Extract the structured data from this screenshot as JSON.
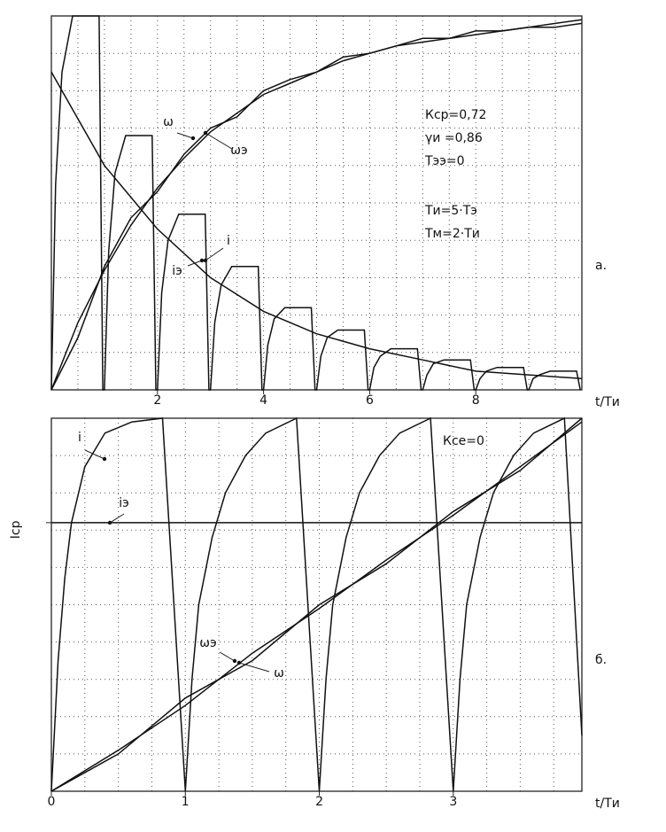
{
  "chart_data": [
    {
      "type": "line",
      "panel_label": "а.",
      "x_label": "t/Tи",
      "xlim": [
        0,
        10
      ],
      "ylim": [
        0,
        1
      ],
      "xticks": [
        2,
        4,
        6,
        8
      ],
      "xgrid": [
        0.5,
        1,
        1.5,
        2,
        2.5,
        3,
        3.5,
        4,
        4.5,
        5,
        5.5,
        6,
        6.5,
        7,
        7.5,
        8,
        8.5,
        9,
        9.5
      ],
      "ygrid": [
        0.1,
        0.2,
        0.3,
        0.4,
        0.5,
        0.6,
        0.7,
        0.8,
        0.9
      ],
      "params": [
        "Кср=0,72",
        "γи =0,86",
        "Тээ=0",
        "Ти=5·Тэ",
        "Тм=2·Ти"
      ],
      "series": [
        {
          "name": "ω",
          "color": "#111",
          "x": [
            0,
            0.5,
            1,
            1.5,
            2,
            2.5,
            3,
            3.5,
            4,
            4.5,
            5,
            5.5,
            6,
            6.5,
            7,
            7.5,
            8,
            8.5,
            9,
            9.5,
            10
          ],
          "values": [
            0,
            0.14,
            0.33,
            0.46,
            0.53,
            0.63,
            0.7,
            0.73,
            0.8,
            0.83,
            0.85,
            0.89,
            0.9,
            0.92,
            0.94,
            0.94,
            0.96,
            0.96,
            0.97,
            0.98,
            0.99
          ]
        },
        {
          "name": "ωэ",
          "color": "#111",
          "x": [
            0,
            0.5,
            1,
            1.5,
            2,
            2.5,
            3,
            3.5,
            4,
            4.5,
            5,
            5.5,
            6,
            6.5,
            7,
            7.5,
            8,
            8.5,
            9,
            9.5,
            10
          ],
          "values": [
            0,
            0.18,
            0.32,
            0.44,
            0.54,
            0.62,
            0.69,
            0.74,
            0.79,
            0.82,
            0.85,
            0.88,
            0.9,
            0.92,
            0.93,
            0.94,
            0.95,
            0.96,
            0.97,
            0.97,
            0.98
          ]
        },
        {
          "name": "iэ",
          "color": "#111",
          "x": [
            0,
            1,
            2,
            3,
            4,
            5,
            6,
            7,
            8,
            9,
            10
          ],
          "values": [
            0.85,
            0.6,
            0.43,
            0.3,
            0.21,
            0.15,
            0.11,
            0.08,
            0.05,
            0.04,
            0.03
          ]
        },
        {
          "name": "i",
          "color": "#111",
          "x": [
            0,
            0.08,
            0.2,
            0.4,
            0.9,
            0.97,
            1,
            1.08,
            1.2,
            1.4,
            1.9,
            1.97,
            2,
            2.08,
            2.2,
            2.4,
            2.9,
            2.97,
            3,
            3.08,
            3.2,
            3.4,
            3.9,
            3.97,
            4,
            4.08,
            4.2,
            4.4,
            4.9,
            4.97,
            5,
            5.08,
            5.2,
            5.4,
            5.9,
            5.97,
            6,
            6.08,
            6.2,
            6.4,
            6.9,
            6.97,
            7,
            7.08,
            7.2,
            7.4,
            7.9,
            7.97,
            8,
            8.08,
            8.2,
            8.4,
            8.9,
            8.97,
            9,
            9.08,
            9.2,
            9.4,
            9.9,
            9.97
          ],
          "values": [
            0,
            0.55,
            0.85,
            1,
            1,
            0,
            0,
            0.37,
            0.58,
            0.68,
            0.68,
            0,
            0,
            0.26,
            0.4,
            0.47,
            0.47,
            0,
            0,
            0.18,
            0.28,
            0.33,
            0.33,
            0,
            0,
            0.12,
            0.19,
            0.22,
            0.22,
            0,
            0,
            0.09,
            0.14,
            0.16,
            0.16,
            0,
            0,
            0.06,
            0.09,
            0.11,
            0.11,
            0,
            0,
            0.04,
            0.07,
            0.08,
            0.08,
            0,
            0,
            0.03,
            0.05,
            0.06,
            0.06,
            0,
            0,
            0.03,
            0.04,
            0.05,
            0.05,
            0
          ]
        }
      ]
    },
    {
      "type": "line",
      "panel_label": "б.",
      "x_label": "t/Tи",
      "xlim": [
        0,
        3.96
      ],
      "ylim": [
        0,
        1
      ],
      "xticks": [
        0,
        1,
        2,
        3
      ],
      "yticks": [
        {
          "value": 0.72,
          "label": "Iср"
        }
      ],
      "xgrid": [
        0.25,
        0.5,
        0.75,
        1,
        1.25,
        1.5,
        1.75,
        2,
        2.25,
        2.5,
        2.75,
        3,
        3.25,
        3.5,
        3.75
      ],
      "ygrid": [
        0.1,
        0.2,
        0.3,
        0.4,
        0.5,
        0.6,
        0.7,
        0.8,
        0.9
      ],
      "params": [
        "Ксе=0"
      ],
      "series": [
        {
          "name": "i",
          "color": "#111",
          "x": [
            0,
            0.05,
            0.1,
            0.15,
            0.25,
            0.4,
            0.6,
            0.83,
            1,
            1.05,
            1.1,
            1.2,
            1.3,
            1.45,
            1.6,
            1.83,
            2,
            2.05,
            2.1,
            2.2,
            2.3,
            2.45,
            2.6,
            2.83,
            3,
            3.05,
            3.1,
            3.2,
            3.3,
            3.45,
            3.6,
            3.83,
            3.96
          ],
          "values": [
            0,
            0.35,
            0.57,
            0.72,
            0.87,
            0.96,
            0.99,
            1,
            0,
            0.3,
            0.5,
            0.68,
            0.8,
            0.9,
            0.96,
            1,
            0,
            0.3,
            0.5,
            0.68,
            0.8,
            0.9,
            0.96,
            1,
            0,
            0.3,
            0.5,
            0.68,
            0.8,
            0.9,
            0.96,
            1,
            0.15
          ]
        },
        {
          "name": "iэ",
          "color": "#111",
          "x": [
            0,
            3.96
          ],
          "values": [
            0.72,
            0.72
          ]
        },
        {
          "name": "ωэ",
          "color": "#111",
          "x": [
            0,
            0.5,
            1,
            1.5,
            2,
            2.5,
            3,
            3.5,
            3.96
          ],
          "values": [
            0,
            0.11,
            0.23,
            0.37,
            0.49,
            0.62,
            0.74,
            0.87,
            0.99
          ]
        },
        {
          "name": "ω",
          "color": "#111",
          "x": [
            0,
            0.5,
            1,
            1.5,
            2,
            2.5,
            3,
            3.5,
            3.96
          ],
          "values": [
            0,
            0.1,
            0.25,
            0.35,
            0.5,
            0.61,
            0.75,
            0.86,
            1
          ]
        }
      ]
    }
  ]
}
